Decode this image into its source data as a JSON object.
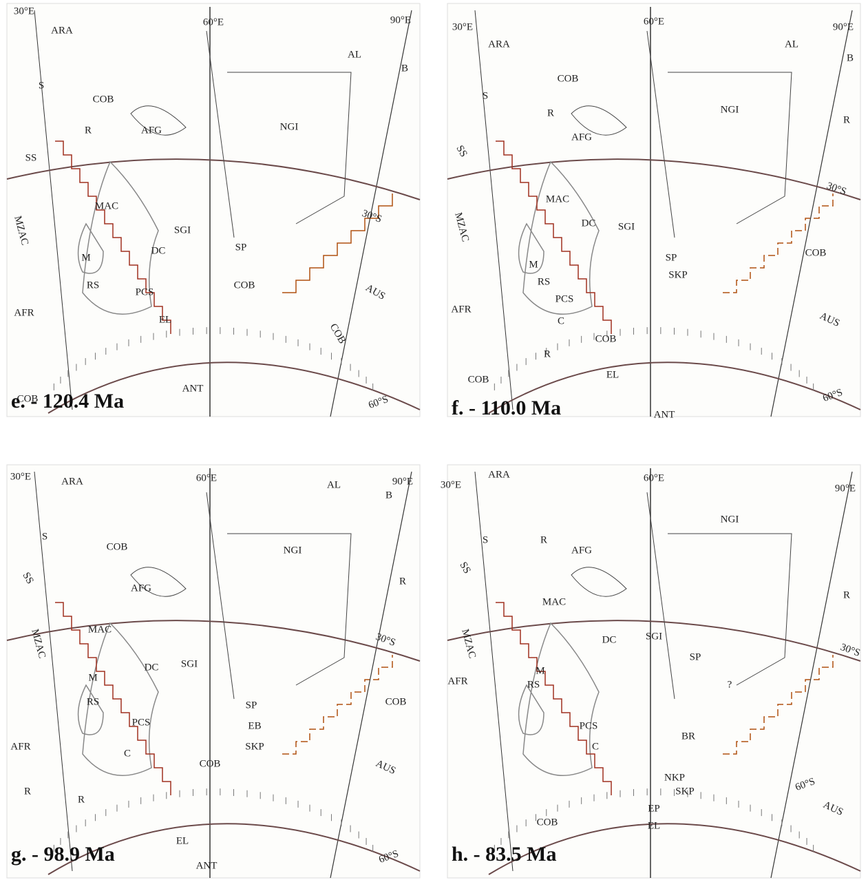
{
  "panels": [
    {
      "caption": "e. - 120.4 Ma",
      "labels": [
        "30°E",
        "ARA",
        "60°E",
        "90°E",
        "AL",
        "B",
        "S",
        "COB",
        "R",
        "AFG",
        "NGI",
        "SS",
        "MAC",
        "SGI",
        "MZAC",
        "M",
        "DC",
        "SP",
        "RS",
        "PCS",
        "COB",
        "AFR",
        "EL",
        "AUS",
        "COB",
        "30°S",
        "ANT",
        "COB",
        "60°S"
      ]
    },
    {
      "caption": "f. - 110.0 Ma",
      "labels": [
        "30°E",
        "ARA",
        "60°E",
        "90°E",
        "AL",
        "B",
        "COB",
        "S",
        "R",
        "AFG",
        "NGI",
        "R",
        "SS",
        "MAC",
        "30°S",
        "DC",
        "SGI",
        "MZAC",
        "SP",
        "SKP",
        "M",
        "RS",
        "PCS",
        "COB",
        "C",
        "AFR",
        "COB",
        "AUS",
        "R",
        "EL",
        "COB",
        "ANT",
        "60°S"
      ]
    },
    {
      "caption": "g. - 98.9 Ma",
      "labels": [
        "30°E",
        "ARA",
        "60°E",
        "AL",
        "90°E",
        "B",
        "S",
        "COB",
        "NGI",
        "SS",
        "R",
        "AFG",
        "MAC",
        "30°S",
        "MZAC",
        "DC",
        "SGI",
        "M",
        "SP",
        "EB",
        "RS",
        "PCS",
        "COB",
        "SKP",
        "AFR",
        "C",
        "AUS",
        "COB",
        "R",
        "R",
        "EL",
        "ANT",
        "60°S"
      ]
    },
    {
      "caption": "h. - 83.5 Ma",
      "labels": [
        "30°E",
        "ARA",
        "60°E",
        "90°E",
        "NGI",
        "S",
        "R",
        "AFG",
        "MAC",
        "R",
        "SS",
        "30°S",
        "MZAC",
        "DC",
        "SGI",
        "SP",
        "AFR",
        "M",
        "RS",
        "?",
        "PCS",
        "BR",
        "C",
        "NKP",
        "SKP",
        "EP",
        "COB",
        "EL",
        "AUS",
        "60°S"
      ]
    }
  ]
}
